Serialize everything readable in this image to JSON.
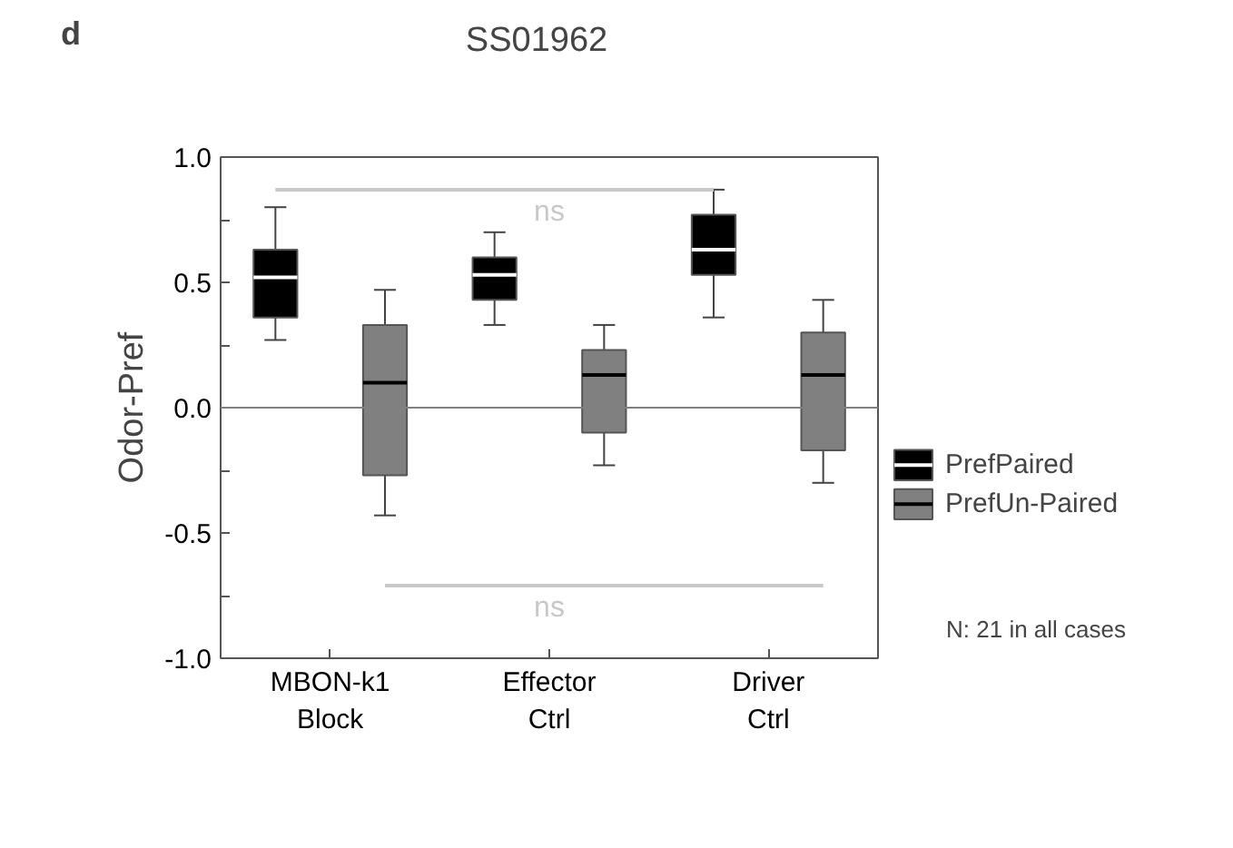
{
  "chart_data": {
    "type": "box",
    "title": "SS01962",
    "ylabel": "Odor-Pref",
    "categories": [
      "MBON-k1\nBlock",
      "Effector\nCtrl",
      "Driver\nCtrl"
    ],
    "series": [
      {
        "name": "PrefPaired",
        "color": "#000000",
        "boxes": [
          {
            "low": 0.27,
            "q1": 0.36,
            "median": 0.52,
            "q3": 0.63,
            "high": 0.8
          },
          {
            "low": 0.33,
            "q1": 0.43,
            "median": 0.53,
            "q3": 0.6,
            "high": 0.7
          },
          {
            "low": 0.36,
            "q1": 0.53,
            "median": 0.63,
            "q3": 0.77,
            "high": 0.87
          }
        ]
      },
      {
        "name": "PrefUn-Paired",
        "color": "#808080",
        "boxes": [
          {
            "low": -0.43,
            "q1": -0.27,
            "median": 0.1,
            "q3": 0.33,
            "high": 0.47
          },
          {
            "low": -0.23,
            "q1": -0.1,
            "median": 0.13,
            "q3": 0.23,
            "high": 0.33
          },
          {
            "low": -0.3,
            "q1": -0.17,
            "median": 0.13,
            "q3": 0.3,
            "high": 0.43
          }
        ]
      }
    ],
    "ylim": [
      -1.0,
      1.0
    ],
    "yticks": [
      {
        "value": -1.0,
        "label": "-1.0"
      },
      {
        "value": -0.75,
        "label": null
      },
      {
        "value": -0.5,
        "label": "-0.5"
      },
      {
        "value": -0.25,
        "label": null
      },
      {
        "value": 0.0,
        "label": "0.0"
      },
      {
        "value": 0.25,
        "label": null
      },
      {
        "value": 0.5,
        "label": "0.5"
      },
      {
        "value": 0.75,
        "label": null
      },
      {
        "value": 1.0,
        "label": "1.0"
      }
    ],
    "ref_lines": [
      {
        "axis": "y",
        "value": 0,
        "color": "#808080"
      }
    ],
    "annotations": [
      "d",
      "ns",
      "ns",
      "N: 21 in all cases"
    ],
    "legend": "bottom right",
    "grid": false
  }
}
